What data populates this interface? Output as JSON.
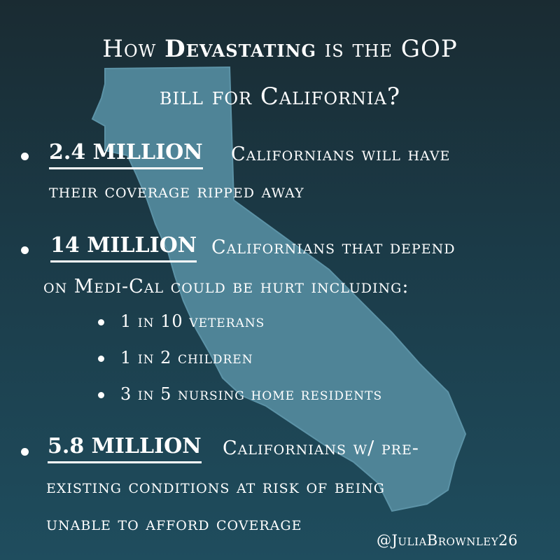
{
  "title": {
    "pre": "How ",
    "emphasis": "Devastating",
    "post": " is the GOP",
    "line2": "bill for California?"
  },
  "points": [
    {
      "stat": "2.4 MILLION",
      "line1": "Californians will have",
      "line2": "their coverage ripped away"
    },
    {
      "stat": "14 MILLION",
      "line1": "Californians that depend",
      "line2": "on Medi-Cal could be hurt including:",
      "subpoints": [
        "1 in 10 veterans",
        "1 in 2 children",
        "3 in 5 nursing home residents"
      ]
    },
    {
      "stat": "5.8 MILLION",
      "line1": "Californians w/ pre-",
      "line2": "existing conditions at risk of being",
      "line3": "unable to afford coverage"
    }
  ],
  "handle": "@JuliaBrownley26",
  "colors": {
    "background_top": "#1a2b32",
    "background_bottom": "#1f4d5e",
    "map": "#4f8497",
    "text": "#ffffff"
  }
}
